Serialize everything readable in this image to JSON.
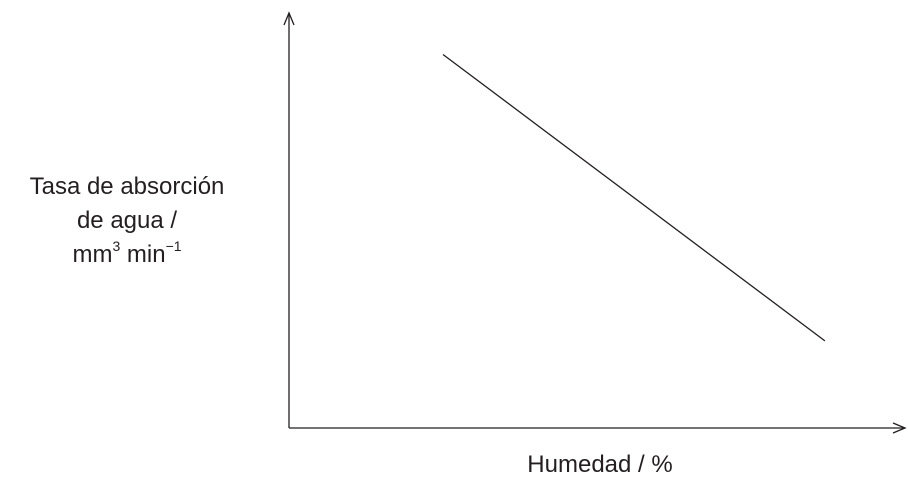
{
  "chart_data": {
    "type": "line",
    "title": "",
    "xlabel": "Humedad / %",
    "ylabel": {
      "line1": "Tasa de absorción",
      "line2": "de agua /",
      "unit_prefix": "mm",
      "unit_exp1": "3",
      "unit_mid": " min",
      "unit_exp2": "−1"
    },
    "axes": {
      "x_ticks": [],
      "y_ticks": [],
      "numeric_scale": false,
      "grid": false
    },
    "series": [
      {
        "x": [
          0.25,
          0.87
        ],
        "y": [
          0.9,
          0.21
        ]
      }
    ],
    "colors": {
      "axis": "#231f20",
      "line": "#231f20"
    }
  }
}
